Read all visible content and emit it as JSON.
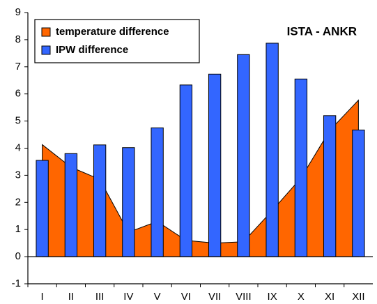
{
  "chart_data": {
    "type": "combo",
    "annotation": "ISTA - ANKR",
    "categories": [
      "I",
      "II",
      "III",
      "IV",
      "V",
      "VI",
      "VII",
      "VIII",
      "IX",
      "X",
      "XI",
      "XII"
    ],
    "series": [
      {
        "name": "temperature difference",
        "type": "area",
        "color": "#ff6600",
        "values": [
          4.13,
          3.3,
          2.85,
          0.9,
          1.3,
          0.6,
          0.5,
          0.55,
          1.7,
          2.9,
          4.65,
          5.77
        ]
      },
      {
        "name": "IPW difference",
        "type": "bar",
        "color": "#3366ff",
        "values": [
          3.55,
          3.8,
          4.12,
          4.02,
          4.75,
          6.33,
          6.73,
          7.45,
          7.87,
          6.55,
          5.2,
          4.67
        ]
      }
    ],
    "ylim": [
      -1,
      9
    ],
    "yticks": [
      -1,
      0,
      1,
      2,
      3,
      4,
      5,
      6,
      7,
      8,
      9
    ],
    "grid": false
  }
}
